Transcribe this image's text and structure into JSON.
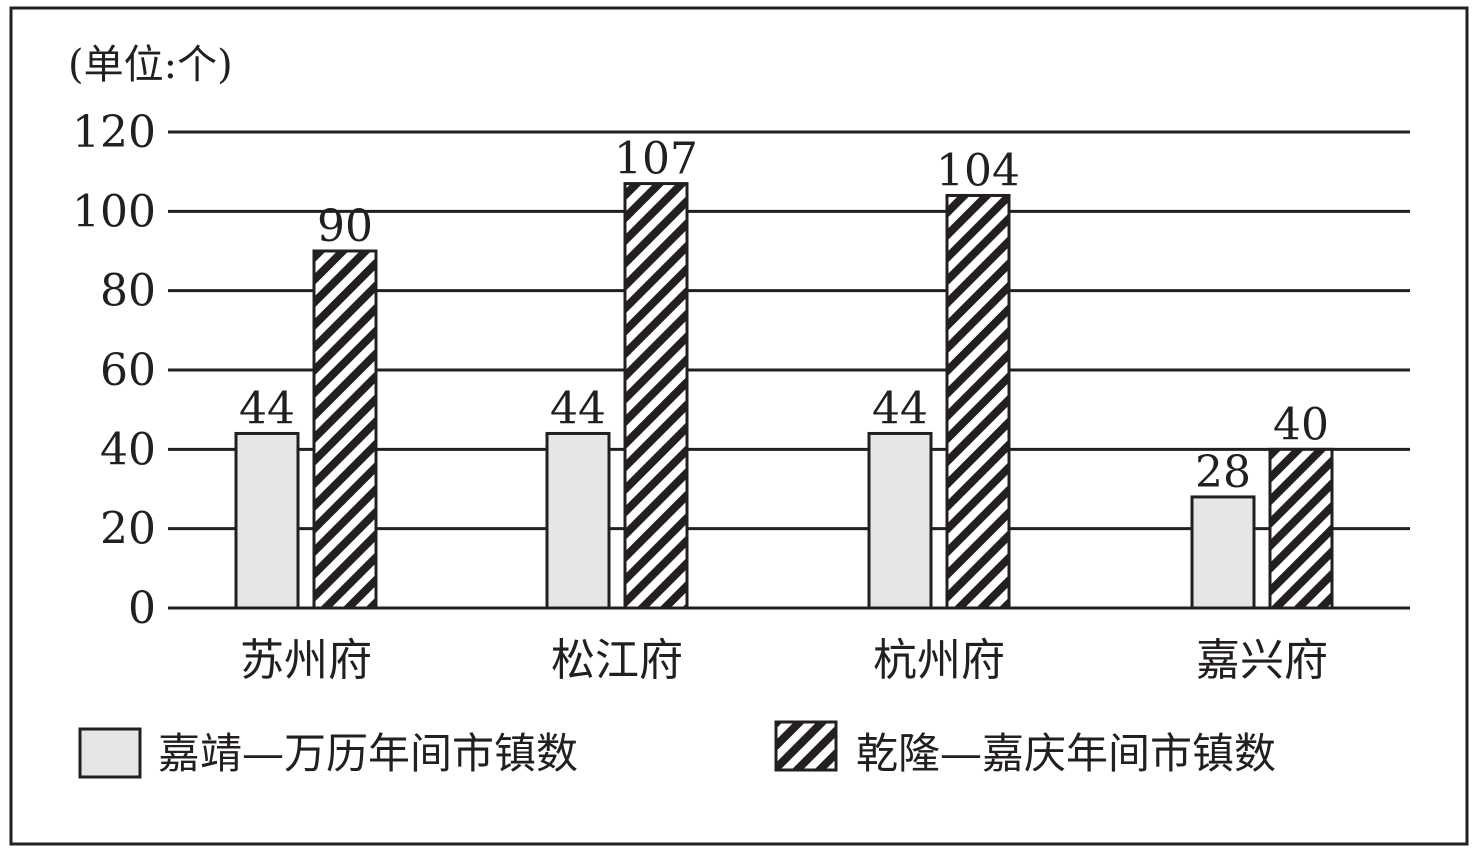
{
  "chart_data": {
    "type": "bar",
    "unit_label": "(单位:个)",
    "categories": [
      "苏州府",
      "松江府",
      "杭州府",
      "嘉兴府"
    ],
    "series": [
      {
        "name": "嘉靖—万历年间市镇数",
        "values": [
          44,
          44,
          44,
          28
        ],
        "data_labels": [
          "44",
          "44",
          "44",
          "28"
        ],
        "fill": "#e6e6e7"
      },
      {
        "name": "乾隆—嘉庆年间市镇数",
        "values": [
          90,
          107,
          104,
          40
        ],
        "data_labels": [
          "90",
          "107",
          "104",
          "40"
        ],
        "fill": "hatched"
      }
    ],
    "yticks": [
      "0",
      "20",
      "40",
      "60",
      "80",
      "100",
      "120"
    ],
    "ylim": [
      0,
      120
    ],
    "grid": true,
    "legend_position": "bottom",
    "colors": {
      "ink": "#231f20",
      "light_fill": "#e6e6e7",
      "background": "#ffffff"
    }
  }
}
